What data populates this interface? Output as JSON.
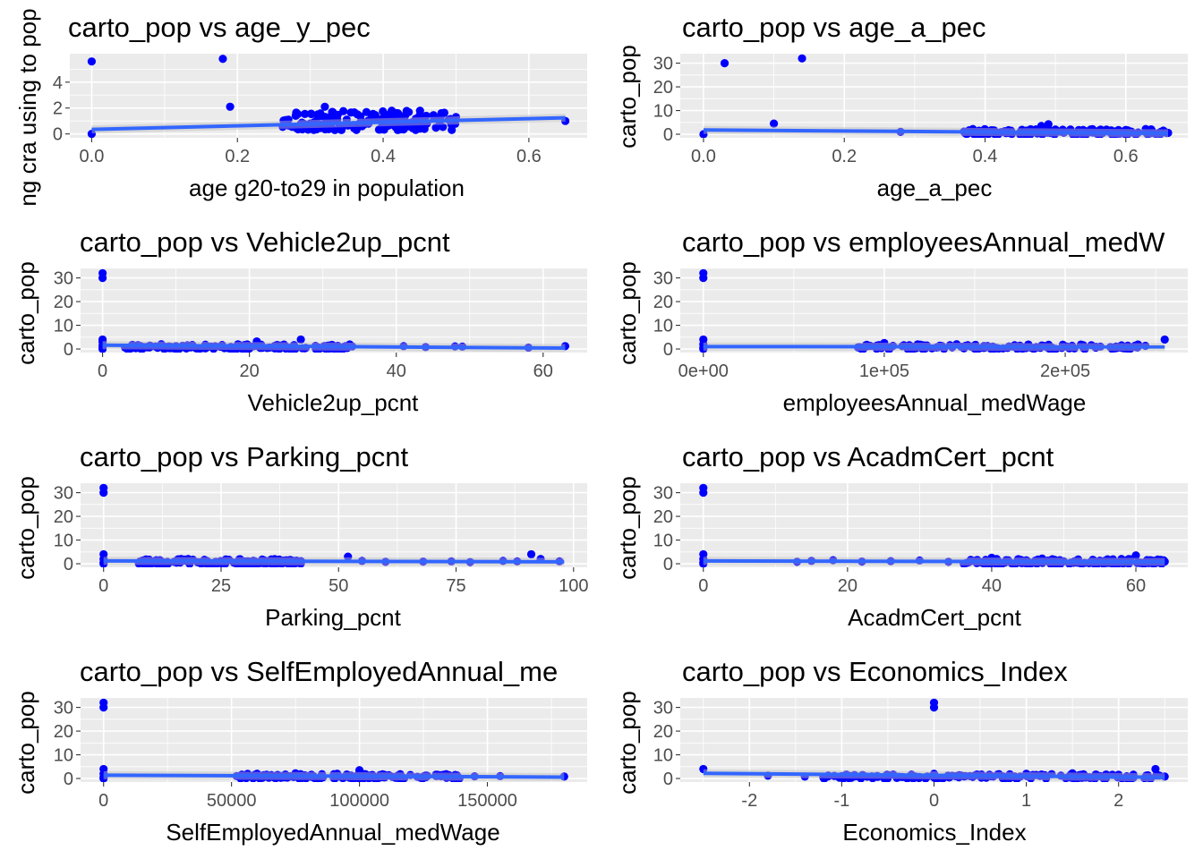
{
  "colors": {
    "points": "#0000ff",
    "fit_line": "#3366ff",
    "panel_bg": "#ebebeb",
    "grid": "#ffffff",
    "tick_text": "#4d4d4d"
  },
  "chart_data": [
    {
      "type": "scatter",
      "title": "carto_pop vs age_y_pec",
      "xlabel": "age g20-to29 in population",
      "ylabel": "ng cra using to pop",
      "xlim": [
        -0.03,
        0.68
      ],
      "ylim": [
        -0.3,
        6.2
      ],
      "xticks": [
        0,
        0.2,
        0.4,
        0.6
      ],
      "xtick_labels": [
        "0.0",
        "0.2",
        "0.4",
        "0.6"
      ],
      "yticks": [
        0,
        2,
        4
      ],
      "ytick_labels": [
        "0",
        "2",
        "4"
      ],
      "points": [
        [
          0,
          5.6
        ],
        [
          0,
          0
        ],
        [
          0.18,
          5.8
        ],
        [
          0.19,
          2.1
        ],
        [
          0.27,
          1.1
        ],
        [
          0.28,
          1.4
        ],
        [
          0.3,
          0.8
        ],
        [
          0.31,
          1.5
        ],
        [
          0.32,
          2.1
        ],
        [
          0.33,
          1.7
        ],
        [
          0.34,
          0.7
        ],
        [
          0.35,
          1.1
        ],
        [
          0.36,
          0.6
        ],
        [
          0.37,
          1.0
        ],
        [
          0.38,
          0.8
        ],
        [
          0.39,
          1.2
        ],
        [
          0.4,
          0.7
        ],
        [
          0.41,
          1.3
        ],
        [
          0.42,
          1.6
        ],
        [
          0.43,
          1.0
        ],
        [
          0.44,
          0.9
        ],
        [
          0.45,
          1.4
        ],
        [
          0.46,
          0.8
        ],
        [
          0.47,
          1.2
        ],
        [
          0.48,
          1.6
        ],
        [
          0.49,
          1.1
        ],
        [
          0.5,
          1.3
        ],
        [
          0.65,
          1.0
        ]
      ],
      "fit": [
        [
          0,
          0.35
        ],
        [
          0.65,
          1.25
        ]
      ],
      "cluster": {
        "x": [
          0.26,
          0.5
        ],
        "y": [
          0.3,
          1.8
        ]
      }
    },
    {
      "type": "scatter",
      "title": "carto_pop vs age_a_pec",
      "xlabel": "age_a_pec",
      "ylabel": "carto_pop",
      "xlim": [
        -0.033,
        0.688
      ],
      "ylim": [
        -1.5,
        34
      ],
      "xticks": [
        0,
        0.2,
        0.4,
        0.6
      ],
      "xtick_labels": [
        "0.0",
        "0.2",
        "0.4",
        "0.6"
      ],
      "yticks": [
        0,
        10,
        20,
        30
      ],
      "ytick_labels": [
        "0",
        "10",
        "20",
        "30"
      ],
      "points": [
        [
          0,
          0
        ],
        [
          0.03,
          30
        ],
        [
          0.1,
          4.5
        ],
        [
          0.14,
          32
        ],
        [
          0.28,
          1.0
        ],
        [
          0.37,
          1.1
        ],
        [
          0.4,
          0.5
        ],
        [
          0.45,
          0.8
        ],
        [
          0.48,
          3.5
        ],
        [
          0.49,
          4.2
        ],
        [
          0.5,
          2.0
        ],
        [
          0.52,
          1.5
        ],
        [
          0.55,
          2.0
        ],
        [
          0.58,
          1.2
        ],
        [
          0.6,
          1.8
        ],
        [
          0.63,
          1.5
        ],
        [
          0.65,
          1.0
        ],
        [
          0.66,
          0.6
        ]
      ],
      "fit": [
        [
          0,
          1.8
        ],
        [
          0.66,
          0.4
        ]
      ],
      "cluster": {
        "x": [
          0.37,
          0.66
        ],
        "y": [
          0,
          2.2
        ]
      }
    },
    {
      "type": "scatter",
      "title": "carto_pop vs Vehicle2up_pcnt",
      "xlabel": "Vehicle2up_pcnt",
      "ylabel": "carto_pop",
      "xlim": [
        -3,
        66
      ],
      "ylim": [
        -1.5,
        34
      ],
      "xticks": [
        0,
        20,
        40,
        60
      ],
      "xtick_labels": [
        "0",
        "20",
        "40",
        "60"
      ],
      "yticks": [
        0,
        10,
        20,
        30
      ],
      "ytick_labels": [
        "0",
        "10",
        "20",
        "30"
      ],
      "points": [
        [
          0,
          30
        ],
        [
          0,
          32
        ],
        [
          0,
          4
        ],
        [
          0,
          3
        ],
        [
          0,
          1.5
        ],
        [
          0,
          0.5
        ],
        [
          0,
          0
        ],
        [
          4,
          1.5
        ],
        [
          6,
          0.8
        ],
        [
          8,
          2.0
        ],
        [
          10,
          1.2
        ],
        [
          12,
          0.7
        ],
        [
          14,
          1.8
        ],
        [
          16,
          1.0
        ],
        [
          18,
          0.6
        ],
        [
          21,
          3.2
        ],
        [
          24,
          1.0
        ],
        [
          27,
          4.0
        ],
        [
          29,
          1.3
        ],
        [
          31,
          0.8
        ],
        [
          34,
          1.1
        ],
        [
          41,
          1.2
        ],
        [
          44,
          0.8
        ],
        [
          48,
          1.1
        ],
        [
          49,
          1.0
        ],
        [
          58,
          0.6
        ],
        [
          63,
          1.2
        ]
      ],
      "fit": [
        [
          0,
          1.6
        ],
        [
          63,
          0.4
        ]
      ],
      "cluster": {
        "x": [
          3,
          34
        ],
        "y": [
          0,
          2
        ]
      }
    },
    {
      "type": "scatter",
      "title": "carto_pop vs employeesAnnual_medW",
      "xlabel": "employeesAnnual_medWage",
      "ylabel": "carto_pop",
      "xlim": [
        -12750,
        267750
      ],
      "ylim": [
        -1.5,
        34
      ],
      "xticks": [
        0,
        100000,
        200000
      ],
      "xtick_labels": [
        "0e+00",
        "1e+05",
        "2e+05"
      ],
      "yticks": [
        0,
        10,
        20,
        30
      ],
      "ytick_labels": [
        "0",
        "10",
        "20",
        "30"
      ],
      "points": [
        [
          0,
          30
        ],
        [
          0,
          32
        ],
        [
          0,
          4
        ],
        [
          0,
          2
        ],
        [
          0,
          0.5
        ],
        [
          0,
          0
        ],
        [
          90000,
          1.0
        ],
        [
          100000,
          2.5
        ],
        [
          110000,
          1.2
        ],
        [
          120000,
          1.8
        ],
        [
          130000,
          0.8
        ],
        [
          140000,
          2.0
        ],
        [
          150000,
          1.5
        ],
        [
          160000,
          1.0
        ],
        [
          175000,
          1.4
        ],
        [
          190000,
          0.7
        ],
        [
          200000,
          1.1
        ],
        [
          210000,
          1.6
        ],
        [
          225000,
          0.8
        ],
        [
          240000,
          0.7
        ],
        [
          255000,
          4.0
        ]
      ],
      "fit": [
        [
          0,
          1.0
        ],
        [
          255000,
          0.9
        ]
      ],
      "cluster": {
        "x": [
          85000,
          245000
        ],
        "y": [
          0,
          2
        ]
      }
    },
    {
      "type": "scatter",
      "title": "carto_pop vs Parking_pcnt",
      "xlabel": "Parking_pcnt",
      "ylabel": "carto_pop",
      "xlim": [
        -4.9,
        102.9
      ],
      "ylim": [
        -1.5,
        34
      ],
      "xticks": [
        0,
        25,
        50,
        75,
        100
      ],
      "xtick_labels": [
        "0",
        "25",
        "50",
        "75",
        "100"
      ],
      "yticks": [
        0,
        10,
        20,
        30
      ],
      "ytick_labels": [
        "0",
        "10",
        "20",
        "30"
      ],
      "points": [
        [
          0,
          30
        ],
        [
          0,
          32
        ],
        [
          0,
          4
        ],
        [
          0,
          2
        ],
        [
          0,
          0.5
        ],
        [
          0,
          0
        ],
        [
          8,
          1.0
        ],
        [
          12,
          1.5
        ],
        [
          15,
          0.8
        ],
        [
          18,
          2.0
        ],
        [
          22,
          1.2
        ],
        [
          26,
          1.8
        ],
        [
          30,
          1.0
        ],
        [
          34,
          1.6
        ],
        [
          38,
          0.8
        ],
        [
          42,
          1.1
        ],
        [
          52,
          3.0
        ],
        [
          55,
          1.2
        ],
        [
          60,
          0.8
        ],
        [
          68,
          0.9
        ],
        [
          74,
          1.0
        ],
        [
          78,
          0.7
        ],
        [
          85,
          1.2
        ],
        [
          88,
          1.0
        ],
        [
          91,
          4.0
        ],
        [
          93,
          2.0
        ],
        [
          97,
          1.0
        ]
      ],
      "fit": [
        [
          0,
          1.2
        ],
        [
          98,
          0.8
        ]
      ],
      "cluster": {
        "x": [
          7,
          42
        ],
        "y": [
          0,
          2
        ]
      }
    },
    {
      "type": "scatter",
      "title": "carto_pop vs AcadmCert_pcnt",
      "xlabel": "AcadmCert_pcnt",
      "ylabel": "carto_pop",
      "xlim": [
        -3.2,
        67.2
      ],
      "ylim": [
        -1.5,
        34
      ],
      "xticks": [
        0,
        20,
        40,
        60
      ],
      "xtick_labels": [
        "0",
        "20",
        "40",
        "60"
      ],
      "yticks": [
        0,
        10,
        20,
        30
      ],
      "ytick_labels": [
        "0",
        "10",
        "20",
        "30"
      ],
      "points": [
        [
          0,
          30
        ],
        [
          0,
          32
        ],
        [
          0,
          4
        ],
        [
          0,
          2
        ],
        [
          0,
          0.5
        ],
        [
          0,
          0
        ],
        [
          13,
          0.8
        ],
        [
          15,
          1.2
        ],
        [
          18,
          1.5
        ],
        [
          22,
          0.9
        ],
        [
          26,
          1.1
        ],
        [
          30,
          1.4
        ],
        [
          34,
          0.8
        ],
        [
          38,
          1.6
        ],
        [
          40,
          2.5
        ],
        [
          42,
          1.5
        ],
        [
          44,
          1.2
        ],
        [
          47,
          2.2
        ],
        [
          50,
          1.0
        ],
        [
          52,
          1.8
        ],
        [
          55,
          1.3
        ],
        [
          58,
          2.0
        ],
        [
          60,
          3.5
        ],
        [
          62,
          1.5
        ],
        [
          64,
          0.9
        ]
      ],
      "fit": [
        [
          0,
          1.2
        ],
        [
          64,
          0.8
        ]
      ],
      "cluster": {
        "x": [
          36,
          64
        ],
        "y": [
          0,
          2
        ]
      }
    },
    {
      "type": "scatter",
      "title": "carto_pop vs SelfEmployedAnnual_me",
      "xlabel": "SelfEmployedAnnual_medWage",
      "ylabel": "carto_pop",
      "xlim": [
        -9000,
        189000
      ],
      "ylim": [
        -1.5,
        34
      ],
      "xticks": [
        0,
        50000,
        100000,
        150000
      ],
      "xtick_labels": [
        "0",
        "50000",
        "100000",
        "150000"
      ],
      "yticks": [
        0,
        10,
        20,
        30
      ],
      "ytick_labels": [
        "0",
        "10",
        "20",
        "30"
      ],
      "points": [
        [
          0,
          30
        ],
        [
          0,
          32
        ],
        [
          0,
          4
        ],
        [
          0,
          2
        ],
        [
          0,
          0.5
        ],
        [
          0,
          0
        ],
        [
          52000,
          1.0
        ],
        [
          60000,
          2.0
        ],
        [
          68000,
          1.5
        ],
        [
          75000,
          2.2
        ],
        [
          82000,
          1.0
        ],
        [
          90000,
          1.8
        ],
        [
          100000,
          3.5
        ],
        [
          105000,
          1.5
        ],
        [
          115000,
          1.2
        ],
        [
          125000,
          0.8
        ],
        [
          135000,
          1.4
        ],
        [
          145000,
          0.9
        ],
        [
          155000,
          1.0
        ],
        [
          180000,
          0.8
        ]
      ],
      "fit": [
        [
          0,
          1.4
        ],
        [
          180000,
          0.6
        ]
      ],
      "cluster": {
        "x": [
          52000,
          140000
        ],
        "y": [
          0,
          2
        ]
      }
    },
    {
      "type": "scatter",
      "title": "carto_pop vs Economics_Index",
      "xlabel": "Economics_Index",
      "ylabel": "carto_pop",
      "xlim": [
        -2.75,
        2.75
      ],
      "ylim": [
        -1.5,
        34
      ],
      "xticks": [
        -2,
        -1,
        0,
        1,
        2
      ],
      "xtick_labels": [
        "-2",
        "-1",
        "0",
        "1",
        "2"
      ],
      "yticks": [
        0,
        10,
        20,
        30
      ],
      "ytick_labels": [
        "0",
        "10",
        "20",
        "30"
      ],
      "points": [
        [
          -2.5,
          4.0
        ],
        [
          -1.8,
          1.2
        ],
        [
          -1.4,
          0.8
        ],
        [
          -1.0,
          1.0
        ],
        [
          -0.5,
          1.5
        ],
        [
          -0.2,
          0.8
        ],
        [
          0,
          30
        ],
        [
          0,
          32
        ],
        [
          0,
          2
        ],
        [
          0,
          0.5
        ],
        [
          0.3,
          1.2
        ],
        [
          0.6,
          1.6
        ],
        [
          1.0,
          2.0
        ],
        [
          1.2,
          1.4
        ],
        [
          1.5,
          2.2
        ],
        [
          1.8,
          1.0
        ],
        [
          2.0,
          1.6
        ],
        [
          2.3,
          1.2
        ],
        [
          2.4,
          4.0
        ],
        [
          2.5,
          0.8
        ]
      ],
      "fit": [
        [
          -2.5,
          2.2
        ],
        [
          2.5,
          0.5
        ]
      ],
      "cluster": {
        "x": [
          -1.2,
          2.5
        ],
        "y": [
          0,
          1.8
        ]
      }
    }
  ]
}
